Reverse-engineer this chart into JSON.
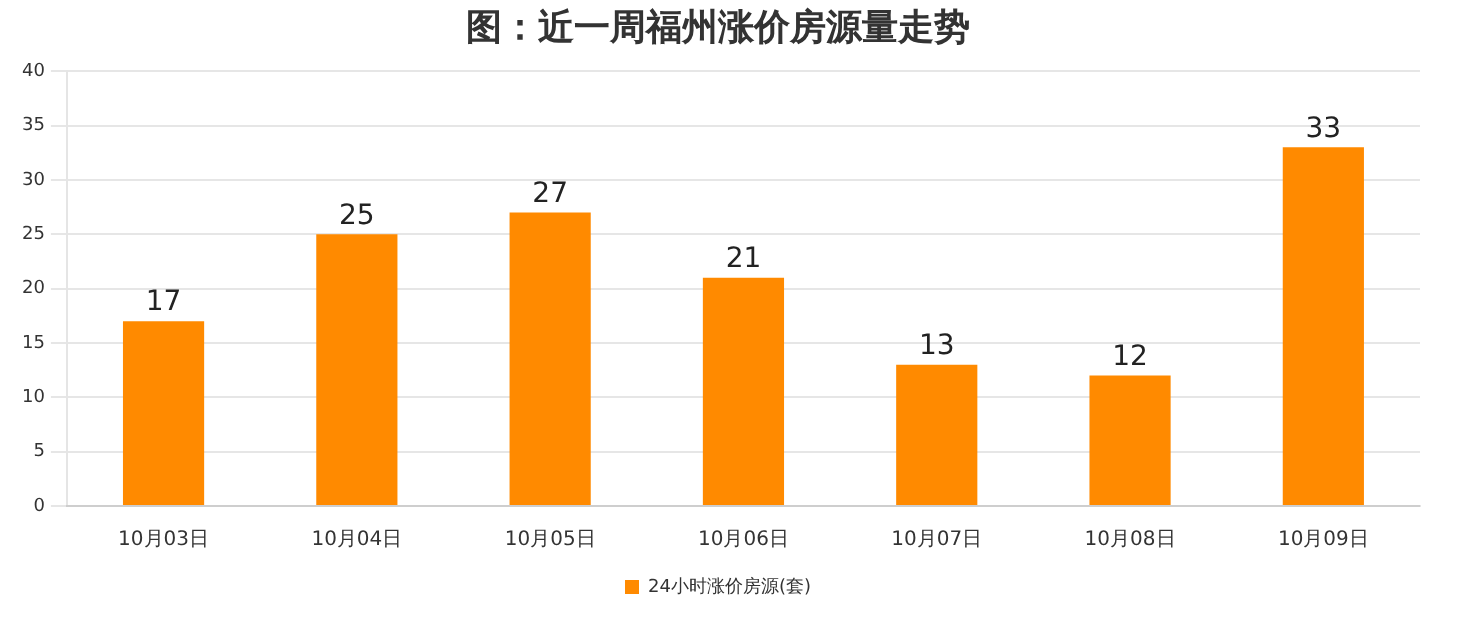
{
  "chart_data": {
    "type": "bar",
    "title": "图：近一周福州涨价房源量走势",
    "categories": [
      "10月03日",
      "10月04日",
      "10月05日",
      "10月06日",
      "10月07日",
      "10月08日",
      "10月09日"
    ],
    "series": [
      {
        "name": "24小时涨价房源(套)",
        "color": "#ff8a00",
        "values": [
          17,
          25,
          27,
          21,
          13,
          12,
          33
        ]
      }
    ],
    "ylim": [
      0,
      40
    ],
    "yticks": [
      0,
      5,
      10,
      15,
      20,
      25,
      30,
      35,
      40
    ],
    "grid": "y",
    "legend": "bottom",
    "data_labels": true
  }
}
